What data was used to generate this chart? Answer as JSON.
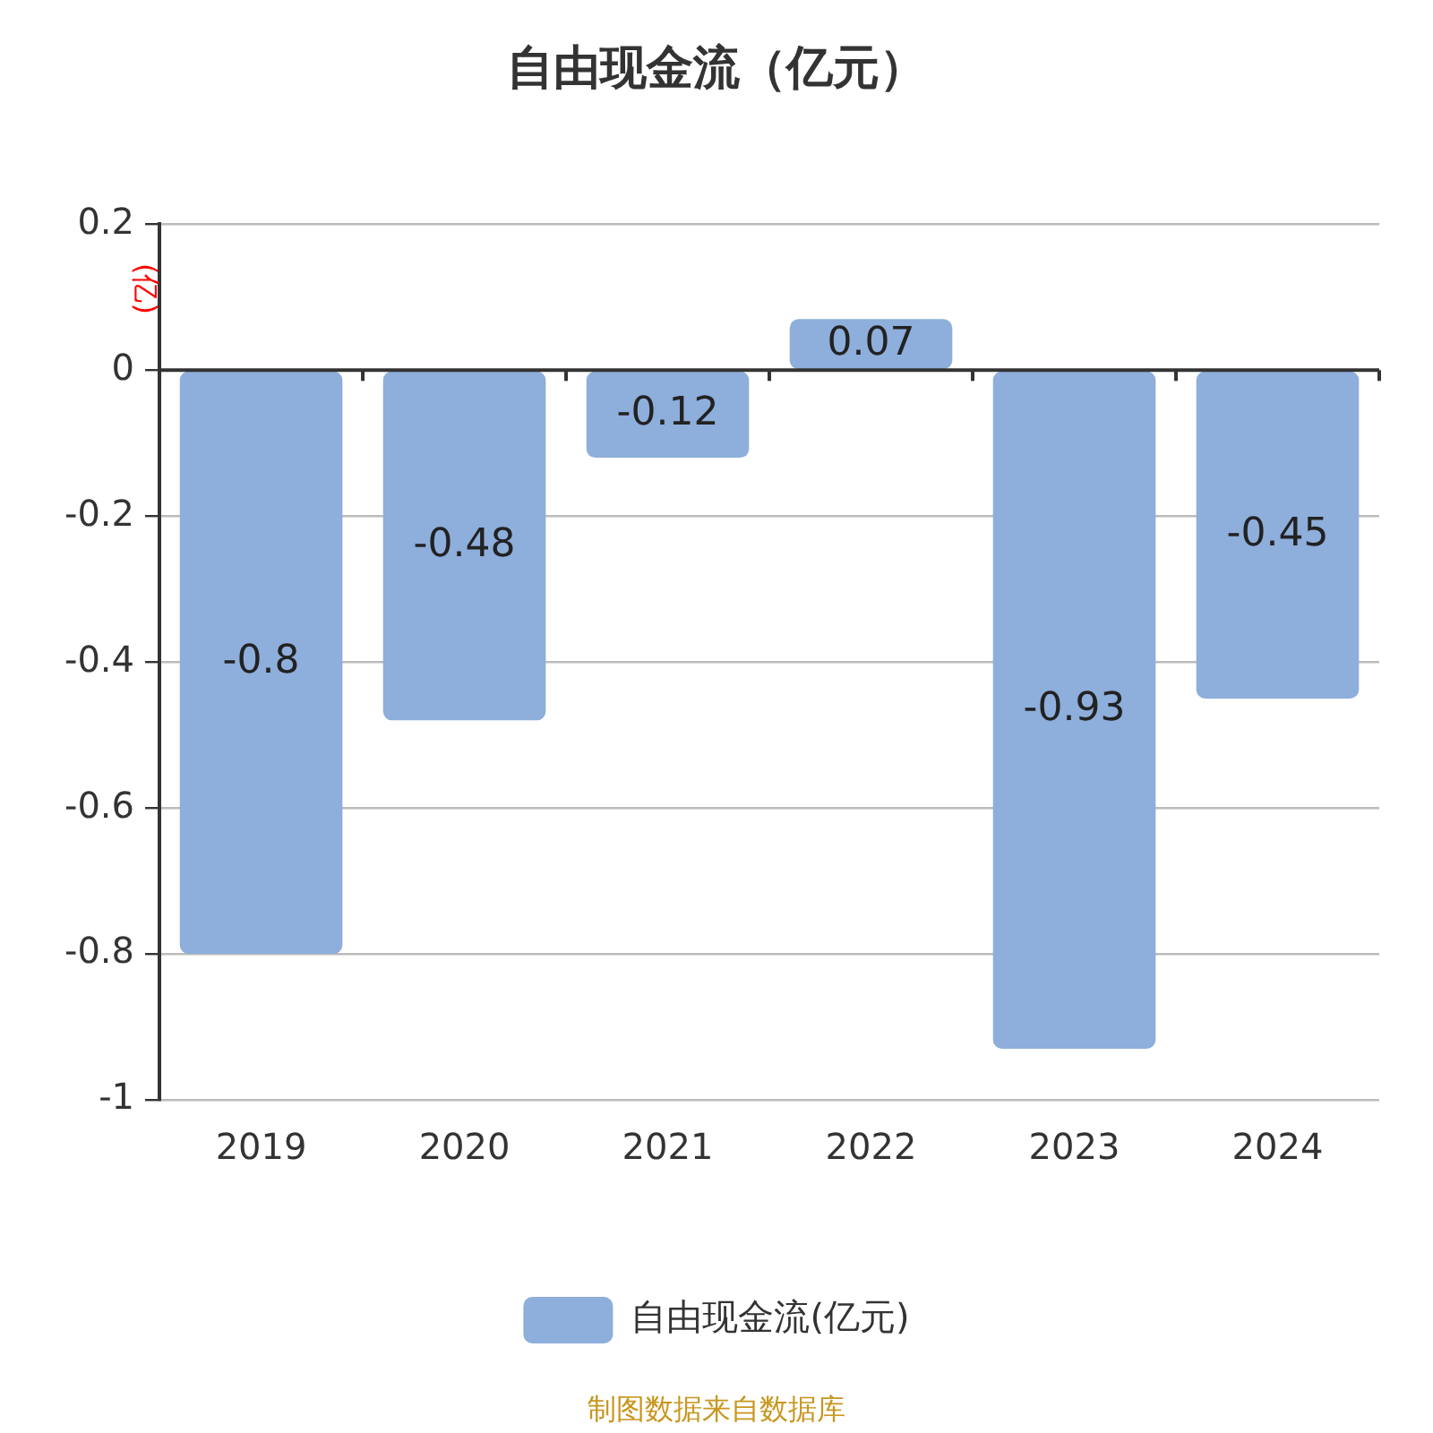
{
  "chart_data": {
    "type": "bar",
    "title": "自由现金流（亿元）",
    "ylabel": "(亿)",
    "categories": [
      "2019",
      "2020",
      "2021",
      "2022",
      "2023",
      "2024"
    ],
    "series": [
      {
        "name": "自由现金流(亿元)",
        "color": "#8eaedb",
        "values": [
          -0.8,
          -0.48,
          -0.12,
          0.07,
          -0.93,
          -0.45
        ]
      }
    ],
    "ylim": [
      -1,
      0.2
    ],
    "yticks": [
      -1,
      -0.8,
      -0.6,
      -0.4,
      -0.2,
      0,
      0.2
    ],
    "grid": "y",
    "legend": "bottom",
    "data_labels": true,
    "annotations": [
      "制图数据来自数据库"
    ]
  }
}
